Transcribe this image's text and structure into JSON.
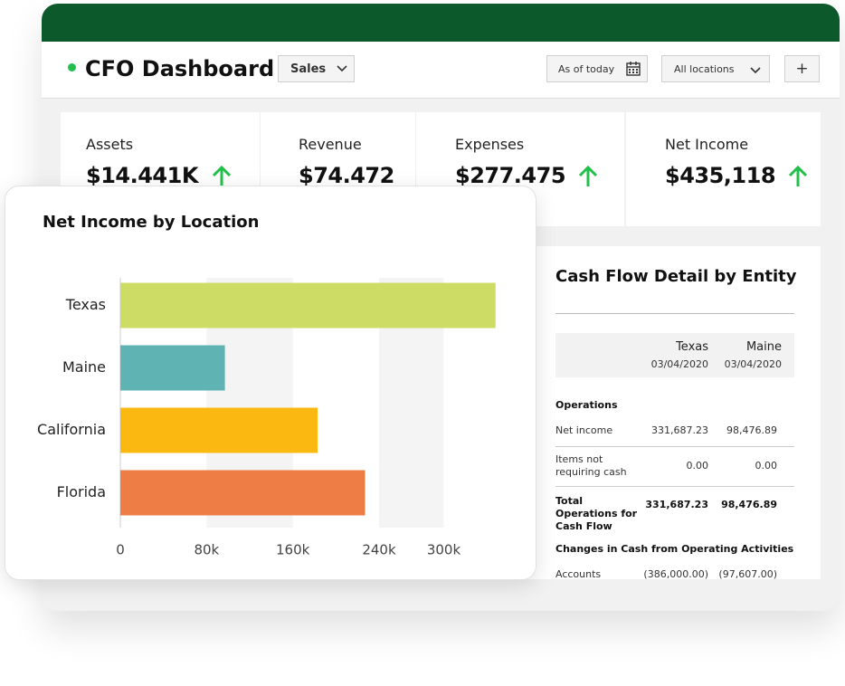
{
  "header": {
    "title": "CFO Dashboard",
    "dropdown": "Sales",
    "date_filter": "As of today",
    "location_filter": "All locations",
    "add_button": "+"
  },
  "kpis": [
    {
      "label": "Assets",
      "value": "$14.441K"
    },
    {
      "label": "Revenue",
      "value": "$74.472"
    },
    {
      "label": "Expenses",
      "value": "$277.475"
    },
    {
      "label": "Net Income",
      "value": "$435,118"
    }
  ],
  "chart_data": {
    "type": "hbar",
    "title": "Net Income by Location",
    "categories": [
      "Texas",
      "Maine",
      "California",
      "Florida"
    ],
    "values": [
      348000,
      97000,
      183000,
      227000
    ],
    "colors": [
      "#cddc64",
      "#5fb3b3",
      "#fbb810",
      "#ee7d45"
    ],
    "xlim": [
      0,
      360000
    ],
    "xticks": [
      0,
      {
        "value": 80000,
        "label": "80k"
      },
      {
        "value": 160000,
        "label": "160k"
      },
      {
        "value": 240000,
        "label": "240k"
      },
      {
        "value": 300000,
        "label": "300k"
      }
    ]
  },
  "cash_flow": {
    "title": "Cash Flow Detail by Entity",
    "columns": [
      {
        "name": "Texas",
        "date": "03/04/2020"
      },
      {
        "name": "Maine",
        "date": "03/04/2020"
      }
    ],
    "sections": [
      {
        "heading": "Operations",
        "rows": [
          {
            "label": "Net income",
            "values": [
              "331,687.23",
              "98,476.89"
            ]
          },
          {
            "label": "Items not requiring cash",
            "values": [
              "0.00",
              "0.00"
            ]
          },
          {
            "label": "Total Operations for Cash Flow",
            "values": [
              "331,687.23",
              "98,476.89"
            ]
          }
        ]
      },
      {
        "heading": "Changes in Cash from Operating Activities",
        "rows": [
          {
            "label": "Accounts",
            "values": [
              "(386,000.00)",
              "(97,607.00)"
            ]
          }
        ]
      }
    ]
  }
}
